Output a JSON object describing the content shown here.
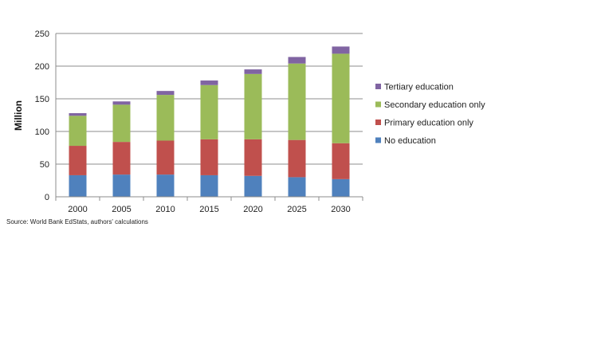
{
  "chart_data": {
    "type": "bar",
    "stacked": true,
    "categories": [
      "2000",
      "2005",
      "2010",
      "2015",
      "2020",
      "2025",
      "2030"
    ],
    "series": [
      {
        "name": "No education",
        "color": "#4f81bd",
        "values": [
          33,
          34,
          34,
          33,
          32,
          30,
          27
        ]
      },
      {
        "name": "Primary education only",
        "color": "#c0504d",
        "values": [
          45,
          50,
          52,
          55,
          56,
          57,
          55
        ]
      },
      {
        "name": "Secondary education only",
        "color": "#9bbb59",
        "values": [
          46,
          57,
          70,
          83,
          100,
          117,
          137
        ]
      },
      {
        "name": "Tertiary education",
        "color": "#8064a2",
        "values": [
          4,
          5,
          6,
          7,
          7,
          10,
          11
        ]
      }
    ],
    "ylabel": "Million",
    "xlabel": "",
    "ylim": [
      0,
      250
    ],
    "yticks": [
      "0",
      "50",
      "100",
      "150",
      "200",
      "250"
    ],
    "grid": true,
    "legend_position": "right"
  },
  "source_note": "Source: World Bank EdStats, authors' calculations"
}
